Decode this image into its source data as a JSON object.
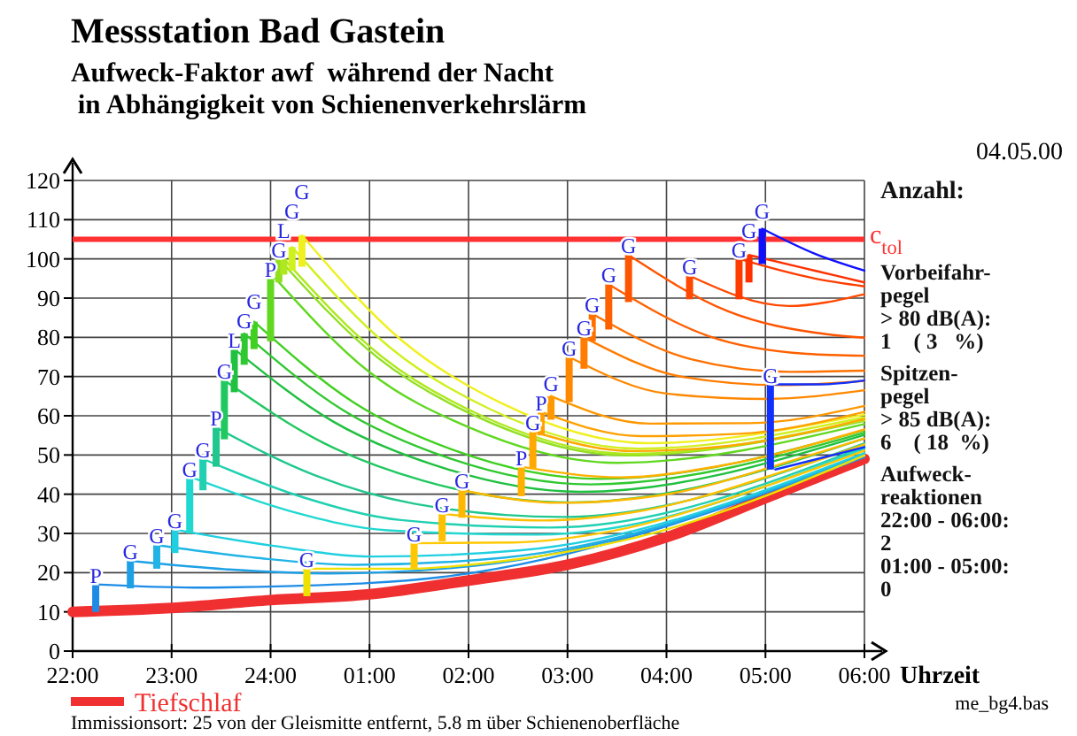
{
  "chart_data": {
    "type": "line",
    "title": "Messstation Bad Gastein",
    "subtitle": "Aufweck-Faktor awf  während der Nacht\n in Abhängigkeit von Schienenverkehrslärm",
    "xlabel": "Uhrzeit",
    "xlim": [
      "2000-05-04T22:00",
      "2000-05-05T06:00"
    ],
    "ylim": [
      0,
      120
    ],
    "xticks": [
      {
        "value": "2000-05-04T22:00",
        "label": "22:00"
      },
      {
        "value": "2000-05-04T23:00",
        "label": "23:00"
      },
      {
        "value": "2000-05-05T00:00",
        "label": "24:00"
      },
      {
        "value": "2000-05-05T01:00",
        "label": "01:00"
      },
      {
        "value": "2000-05-05T02:00",
        "label": "02:00"
      },
      {
        "value": "2000-05-05T03:00",
        "label": "03:00"
      },
      {
        "value": "2000-05-05T04:00",
        "label": "04:00"
      },
      {
        "value": "2000-05-05T05:00",
        "label": "05:00"
      },
      {
        "value": "2000-05-05T06:00",
        "label": "06:00"
      }
    ],
    "yticks": [
      0,
      10,
      20,
      30,
      40,
      50,
      60,
      70,
      80,
      90,
      100,
      110,
      120
    ],
    "grid": true,
    "legend": "bottom",
    "ref_lines": [
      {
        "axis": "y",
        "value": 105,
        "label": "c$_{tol}$",
        "color": "#ff3030"
      }
    ],
    "series": [
      {
        "name": "Tiefschlaf",
        "color": "#f03030",
        "x": [
          "2000-05-04T22:00",
          "2000-05-04T23:00",
          "2000-05-05T00:00",
          "2000-05-05T01:00",
          "2000-05-05T02:00",
          "2000-05-05T03:00",
          "2000-05-05T04:00",
          "2000-05-05T05:00",
          "2000-05-05T06:00"
        ],
        "values": [
          10,
          11,
          13,
          14.5,
          18,
          22,
          29,
          39,
          49
        ]
      },
      {
        "type": "bar",
        "x": [
          "2000-05-04T22:14",
          "2000-05-04T22:35",
          "2000-05-04T22:51",
          "2000-05-04T23:02",
          "2000-05-04T23:11",
          "2000-05-04T23:19",
          "2000-05-04T23:27",
          "2000-05-04T23:32",
          "2000-05-04T23:38",
          "2000-05-04T23:44",
          "2000-05-04T23:50",
          "2000-05-05T00:00",
          "2000-05-05T00:05",
          "2000-05-05T00:08",
          "2000-05-05T00:13",
          "2000-05-05T00:19",
          "2000-05-05T00:22",
          "2000-05-05T01:27",
          "2000-05-05T01:44",
          "2000-05-05T01:56",
          "2000-05-05T02:32",
          "2000-05-05T02:39",
          "2000-05-05T02:44",
          "2000-05-05T02:50",
          "2000-05-05T03:01",
          "2000-05-05T03:10",
          "2000-05-05T03:15",
          "2000-05-05T03:25",
          "2000-05-05T03:37",
          "2000-05-05T04:14",
          "2000-05-05T04:44",
          "2000-05-05T04:50",
          "2000-05-05T04:58",
          "2000-05-05T05:03"
        ],
        "base": [
          10,
          16,
          21,
          25,
          30,
          41,
          47,
          54,
          66,
          73,
          77,
          79,
          94,
          96,
          97,
          98,
          14,
          21,
          28,
          34,
          39.5,
          46.7,
          55,
          59,
          63.5,
          72,
          79,
          82,
          89,
          89.7,
          89.7,
          94,
          98.7,
          46.3
        ],
        "values": [
          7,
          7,
          6,
          6,
          14,
          8,
          10,
          15,
          11,
          8,
          7,
          16,
          6,
          4,
          6,
          8,
          7,
          6.5,
          7,
          7,
          7.5,
          9.3,
          6,
          6,
          11.5,
          8,
          7,
          11.5,
          12,
          6,
          10.3,
          7,
          9,
          21.7
        ],
        "colors": [
          "#1e8ce6",
          "#1ea0e6",
          "#20b4e6",
          "#20d0e0",
          "#20d8d0",
          "#20d0b0",
          "#20c890",
          "#20c860",
          "#20c040",
          "#30c830",
          "#40d020",
          "#60d820",
          "#90e020",
          "#b0e820",
          "#d0f020",
          "#f0f020",
          "#f0e000",
          "#ffc800",
          "#ffc000",
          "#ffb800",
          "#ffb000",
          "#ffa800",
          "#ffa000",
          "#ff9800",
          "#ff8800",
          "#ff7c00",
          "#ff7000",
          "#ff6000",
          "#ff5400",
          "#ff4800",
          "#ff3c00",
          "#ff3000",
          "#1010ff",
          "#1030ff"
        ]
      },
      {
        "color": "#1e8ce6",
        "x": [
          "2000-05-04T22:14",
          "2000-05-04T23:14",
          "2000-05-05T00:14",
          "2000-05-05T01:44",
          "2000-05-05T06:00"
        ],
        "values": [
          17,
          16.2,
          16.6,
          18.9,
          49.4
        ]
      },
      {
        "color": "#1ea0e6",
        "x": [
          "2000-05-04T22:35",
          "2000-05-04T23:35",
          "2000-05-05T00:35",
          "2000-05-05T02:05",
          "2000-05-05T06:00"
        ],
        "values": [
          23,
          20.8,
          19.8,
          21.8,
          49.8
        ]
      },
      {
        "color": "#20b4e6",
        "x": [
          "2000-05-04T22:51",
          "2000-05-04T23:51",
          "2000-05-05T00:51",
          "2000-05-05T02:21",
          "2000-05-05T06:00"
        ],
        "values": [
          27,
          23.8,
          22,
          23.8,
          50.1
        ]
      },
      {
        "color": "#20d0e0",
        "x": [
          "2000-05-04T23:02",
          "2000-05-05T00:02",
          "2000-05-05T01:02",
          "2000-05-05T02:32",
          "2000-05-05T06:00"
        ],
        "values": [
          31,
          26.8,
          24.1,
          25.7,
          50.5
        ]
      },
      {
        "color": "#20d8d0",
        "x": [
          "2000-05-04T23:14",
          "2000-05-05T00:11",
          "2000-05-05T01:11",
          "2000-05-05T02:41",
          "2000-05-05T06:00"
        ],
        "values": [
          44,
          35.8,
          30.8,
          29.7,
          51.6
        ]
      },
      {
        "color": "#20d0b0",
        "x": [
          "2000-05-04T23:19",
          "2000-05-05T00:19",
          "2000-05-05T01:19",
          "2000-05-05T02:49",
          "2000-05-05T06:00"
        ],
        "values": [
          49,
          39.3,
          33.4,
          31.5,
          52.1
        ]
      },
      {
        "color": "#20c890",
        "x": [
          "2000-05-04T23:27",
          "2000-05-05T00:27",
          "2000-05-05T01:27",
          "2000-05-05T02:57",
          "2000-05-05T06:00"
        ],
        "values": [
          57,
          44.8,
          37.6,
          34.2,
          53
        ]
      },
      {
        "color": "#20c860",
        "x": [
          "2000-05-04T23:32",
          "2000-05-05T00:32",
          "2000-05-05T01:32",
          "2000-05-05T03:02",
          "2000-05-05T06:00"
        ],
        "values": [
          69,
          53.1,
          43.5,
          37.9,
          54.2
        ]
      },
      {
        "color": "#20c040",
        "x": [
          "2000-05-04T23:38",
          "2000-05-05T00:38",
          "2000-05-05T01:38",
          "2000-05-05T03:08",
          "2000-05-05T06:00"
        ],
        "values": [
          77,
          58.5,
          47.6,
          40.6,
          55.1
        ]
      },
      {
        "color": "#30c830",
        "x": [
          "2000-05-04T23:44",
          "2000-05-05T00:44",
          "2000-05-05T01:44",
          "2000-05-05T03:14",
          "2000-05-05T06:00"
        ],
        "values": [
          81,
          61.4,
          49.8,
          42.5,
          55.7
        ]
      },
      {
        "color": "#40d020",
        "x": [
          "2000-05-04T23:50",
          "2000-05-05T00:50",
          "2000-05-05T01:50",
          "2000-05-05T03:20",
          "2000-05-05T06:00"
        ],
        "values": [
          84,
          63.5,
          51.4,
          43.9,
          56.3
        ]
      },
      {
        "color": "#60d820",
        "x": [
          "2000-05-05T00:03",
          "2000-05-05T01:00",
          "2000-05-05T02:00",
          "2000-05-05T03:30",
          "2000-05-05T06:00"
        ],
        "values": [
          95,
          71.1,
          57.1,
          48,
          57.9
        ]
      },
      {
        "color": "#90e020",
        "x": [
          "2000-05-05T00:05",
          "2000-05-05T01:05",
          "2000-05-05T02:05",
          "2000-05-05T03:35",
          "2000-05-05T06:00"
        ],
        "values": [
          100,
          74.8,
          59.8,
          49.9,
          58.7
        ]
      },
      {
        "color": "#b0e820",
        "x": [
          "2000-05-05T00:08",
          "2000-05-05T01:08",
          "2000-05-05T02:08",
          "2000-05-05T03:38",
          "2000-05-05T06:00"
        ],
        "values": [
          100,
          74.9,
          60,
          50.3,
          58.9
        ]
      },
      {
        "color": "#d0f020",
        "x": [
          "2000-05-05T00:13",
          "2000-05-05T01:13",
          "2000-05-05T02:13",
          "2000-05-05T03:43",
          "2000-05-05T06:00"
        ],
        "values": [
          103,
          77.2,
          61.7,
          51.6,
          59.6
        ]
      },
      {
        "color": "#f0f020",
        "x": [
          "2000-05-05T00:19",
          "2000-05-05T01:19",
          "2000-05-05T02:19",
          "2000-05-05T03:49",
          "2000-05-05T06:00"
        ],
        "values": [
          106,
          79.4,
          63.4,
          53,
          60.3
        ]
      },
      {
        "color": "#f0e000",
        "x": [
          "2000-05-05T00:22",
          "2000-05-05T01:22",
          "2000-05-05T02:22",
          "2000-05-05T03:52",
          "2000-05-05T06:00"
        ],
        "values": [
          21,
          21,
          23,
          30.1,
          49.9
        ]
      },
      {
        "color": "#ffc800",
        "x": [
          "2000-05-05T01:27",
          "2000-05-05T02:27",
          "2000-05-05T03:27",
          "2000-05-05T04:57",
          "2000-05-05T06:00"
        ],
        "values": [
          27.5,
          27.7,
          30.6,
          41.6,
          51.1
        ]
      },
      {
        "color": "#ffc000",
        "x": [
          "2000-05-05T01:44",
          "2000-05-05T02:44",
          "2000-05-05T03:44",
          "2000-05-05T05:14",
          "2000-05-05T06:00"
        ],
        "values": [
          35,
          33.3,
          35.7,
          46.2,
          52.7
        ]
      },
      {
        "color": "#ffb800",
        "x": [
          "2000-05-05T01:56",
          "2000-05-05T02:56",
          "2000-05-05T03:56",
          "2000-05-05T05:26",
          "2000-05-05T06:00"
        ],
        "values": [
          41,
          37.8,
          39.7,
          49.8,
          54.2
        ]
      },
      {
        "color": "#ffb000",
        "x": [
          "2000-05-05T02:32",
          "2000-05-05T03:32",
          "2000-05-05T04:32",
          "2000-05-05T06:00"
        ],
        "values": [
          47,
          44.3,
          47.2,
          56.5
        ]
      },
      {
        "color": "#ffa800",
        "x": [
          "2000-05-05T02:39",
          "2000-05-05T03:39",
          "2000-05-05T04:39",
          "2000-05-05T06:00"
        ],
        "values": [
          56,
          51,
          52.4,
          59.2
        ]
      },
      {
        "color": "#ffa000",
        "x": [
          "2000-05-05T02:44",
          "2000-05-05T03:44",
          "2000-05-05T04:44",
          "2000-05-05T06:00"
        ],
        "values": [
          61,
          54.8,
          55.4,
          61
        ]
      },
      {
        "color": "#ff9800",
        "x": [
          "2000-05-05T02:50",
          "2000-05-05T03:50",
          "2000-05-05T04:50",
          "2000-05-05T06:00"
        ],
        "values": [
          65,
          58,
          58.1,
          62.5
        ]
      },
      {
        "color": "#ff8800",
        "x": [
          "2000-05-05T03:01",
          "2000-05-05T04:01",
          "2000-05-05T05:01",
          "2000-05-05T06:00"
        ],
        "values": [
          75,
          65.6,
          64.3,
          66.5
        ]
      },
      {
        "color": "#ff7c00",
        "x": [
          "2000-05-05T03:10",
          "2000-05-05T04:10",
          "2000-05-05T05:10",
          "2000-05-05T06:00"
        ],
        "values": [
          80,
          69.9,
          67.8,
          68.9
        ]
      },
      {
        "color": "#ff7000",
        "x": [
          "2000-05-05T03:15",
          "2000-05-05T04:15",
          "2000-05-05T05:15",
          "2000-05-05T06:00"
        ],
        "values": [
          86,
          74.4,
          71.2,
          71.5
        ]
      },
      {
        "color": "#ff6000",
        "x": [
          "2000-05-05T03:25",
          "2000-05-05T04:25",
          "2000-05-05T05:25",
          "2000-05-05T06:00"
        ],
        "values": [
          93.5,
          80.4,
          75.8,
          75.3
        ]
      },
      {
        "color": "#ff5400",
        "x": [
          "2000-05-05T03:37",
          "2000-05-05T04:37",
          "2000-05-05T05:37",
          "2000-05-05T06:00"
        ],
        "values": [
          101,
          86.7,
          80.8,
          79.9
        ]
      },
      {
        "color": "#ff4800",
        "x": [
          "2000-05-05T04:14",
          "2000-05-05T05:14",
          "2000-05-05T06:00"
        ],
        "values": [
          95.7,
          88,
          91
        ]
      },
      {
        "color": "#ff3c00",
        "x": [
          "2000-05-05T04:44",
          "2000-05-05T05:30",
          "2000-05-05T06:00"
        ],
        "values": [
          100,
          95,
          93
        ]
      },
      {
        "color": "#ff3000",
        "x": [
          "2000-05-05T04:50",
          "2000-05-05T05:30",
          "2000-05-05T06:00"
        ],
        "values": [
          101,
          97,
          94
        ]
      },
      {
        "color": "#1010ff",
        "x": [
          "2000-05-05T04:58",
          "2000-05-05T05:30",
          "2000-05-05T06:00"
        ],
        "values": [
          107.7,
          101.3,
          97
        ]
      },
      {
        "color": "#1030ff",
        "x": [
          "2000-05-05T05:06",
          "2000-05-05T05:33",
          "2000-05-05T06:00"
        ],
        "values": [
          68,
          68,
          69
        ]
      },
      {
        "color": "#1030ff",
        "x": [
          "2000-05-05T05:06",
          "2000-05-05T06:00"
        ],
        "values": [
          46.3,
          52
        ]
      }
    ],
    "annotations": [
      "04.05.00",
      "Anzahl:",
      "Vorbeifahr-\npegel\n> 80 dB(A):\n1    ( 3   %)",
      "Spitzen-\npegel\n> 85 dB(A):\n6    ( 18  %)",
      "Aufweck-\nreaktionen\n22:00 - 06:00:\n2\n01:00 - 05:00:\n0",
      "me_bg4.bas",
      "Immissionsort: 25 von der Gleismitte entfernt, 5.8 m über Schienenoberfläche",
      {
        "text": "P",
        "x": "2000-05-04T22:14",
        "y": 17
      },
      {
        "text": "G",
        "x": "2000-05-04T22:35",
        "y": 23
      },
      {
        "text": "G",
        "x": "2000-05-04T22:51",
        "y": 27
      },
      {
        "text": "G",
        "x": "2000-05-04T23:02",
        "y": 31
      },
      {
        "text": "G",
        "x": "2000-05-04T23:11",
        "y": 44
      },
      {
        "text": "G",
        "x": "2000-05-04T23:19",
        "y": 49
      },
      {
        "text": "P",
        "x": "2000-05-04T23:27",
        "y": 57
      },
      {
        "text": "G",
        "x": "2000-05-04T23:32",
        "y": 69
      },
      {
        "text": "L",
        "x": "2000-05-04T23:38",
        "y": 77
      },
      {
        "text": "G",
        "x": "2000-05-04T23:44",
        "y": 81
      },
      {
        "text": "G",
        "x": "2000-05-04T23:50",
        "y": 84
      },
      {
        "text": "P",
        "x": "2000-05-05T00:00",
        "y": 95
      },
      {
        "text": "G",
        "x": "2000-05-05T00:05",
        "y": 100
      },
      {
        "text": "L",
        "x": "2000-05-05T00:08",
        "y": 100
      },
      {
        "text": "G",
        "x": "2000-05-05T00:13",
        "y": 103
      },
      {
        "text": "G",
        "x": "2000-05-05T00:19",
        "y": 106
      },
      {
        "text": "G",
        "x": "2000-05-05T00:22",
        "y": 21
      },
      {
        "text": "G",
        "x": "2000-05-05T01:27",
        "y": 27.5
      },
      {
        "text": "G",
        "x": "2000-05-05T01:44",
        "y": 35
      },
      {
        "text": "G",
        "x": "2000-05-05T01:56",
        "y": 41
      },
      {
        "text": "P",
        "x": "2000-05-05T02:32",
        "y": 47
      },
      {
        "text": "G",
        "x": "2000-05-05T02:39",
        "y": 56
      },
      {
        "text": "P",
        "x": "2000-05-05T02:44",
        "y": 61
      },
      {
        "text": "G",
        "x": "2000-05-05T02:50",
        "y": 65
      },
      {
        "text": "G",
        "x": "2000-05-05T03:01",
        "y": 75
      },
      {
        "text": "G",
        "x": "2000-05-05T03:10",
        "y": 80
      },
      {
        "text": "G",
        "x": "2000-05-05T03:15",
        "y": 86
      },
      {
        "text": "G",
        "x": "2000-05-05T03:25",
        "y": 93.5
      },
      {
        "text": "G",
        "x": "2000-05-05T03:37",
        "y": 101
      },
      {
        "text": "G",
        "x": "2000-05-05T04:14",
        "y": 95.7
      },
      {
        "text": "G",
        "x": "2000-05-05T04:44",
        "y": 100
      },
      {
        "text": "G",
        "x": "2000-05-05T04:50",
        "y": 101
      },
      {
        "text": "G",
        "x": "2000-05-05T04:58",
        "y": 107.7
      },
      {
        "text": "G",
        "x": "2000-05-05T05:03",
        "y": 68
      }
    ]
  }
}
